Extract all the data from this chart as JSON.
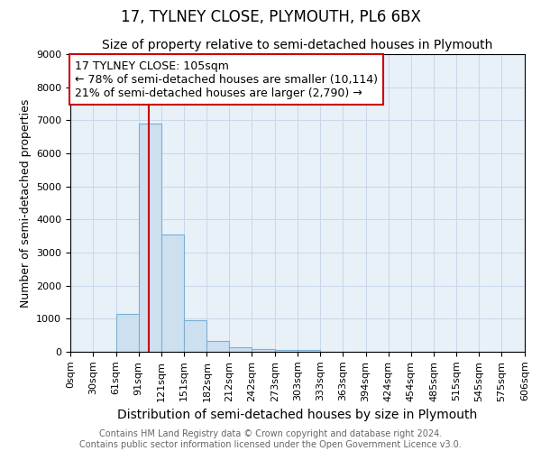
{
  "title": "17, TYLNEY CLOSE, PLYMOUTH, PL6 6BX",
  "subtitle": "Size of property relative to semi-detached houses in Plymouth",
  "xlabel": "Distribution of semi-detached houses by size in Plymouth",
  "ylabel": "Number of semi-detached properties",
  "annotation_text_line1": "17 TYLNEY CLOSE: 105sqm",
  "annotation_text_line2": "← 78% of semi-detached houses are smaller (10,114)",
  "annotation_text_line3": "21% of semi-detached houses are larger (2,790) →",
  "bin_edges": [
    0,
    30,
    61,
    91,
    121,
    151,
    182,
    212,
    242,
    273,
    303,
    333,
    363,
    394,
    424,
    454,
    485,
    515,
    545,
    575,
    606
  ],
  "bar_heights": [
    0,
    0,
    1150,
    6900,
    3550,
    950,
    320,
    130,
    90,
    60,
    50,
    0,
    0,
    0,
    0,
    0,
    0,
    0,
    0,
    0
  ],
  "bar_color": "#cde0f0",
  "bar_edge_color": "#7bafd4",
  "red_line_x": 105,
  "red_line_color": "#cc0000",
  "ylim": [
    0,
    9000
  ],
  "yticks": [
    0,
    1000,
    2000,
    3000,
    4000,
    5000,
    6000,
    7000,
    8000,
    9000
  ],
  "grid_color": "#c8d8e8",
  "plot_bg_color": "#e8f0f8",
  "fig_bg_color": "#ffffff",
  "annotation_box_facecolor": "#ffffff",
  "annotation_box_edgecolor": "#cc0000",
  "title_fontsize": 12,
  "subtitle_fontsize": 10,
  "xlabel_fontsize": 10,
  "ylabel_fontsize": 9,
  "tick_fontsize": 8,
  "annotation_fontsize": 9,
  "footer_fontsize": 7,
  "footer_line1": "Contains HM Land Registry data © Crown copyright and database right 2024.",
  "footer_line2": "Contains public sector information licensed under the Open Government Licence v3.0."
}
